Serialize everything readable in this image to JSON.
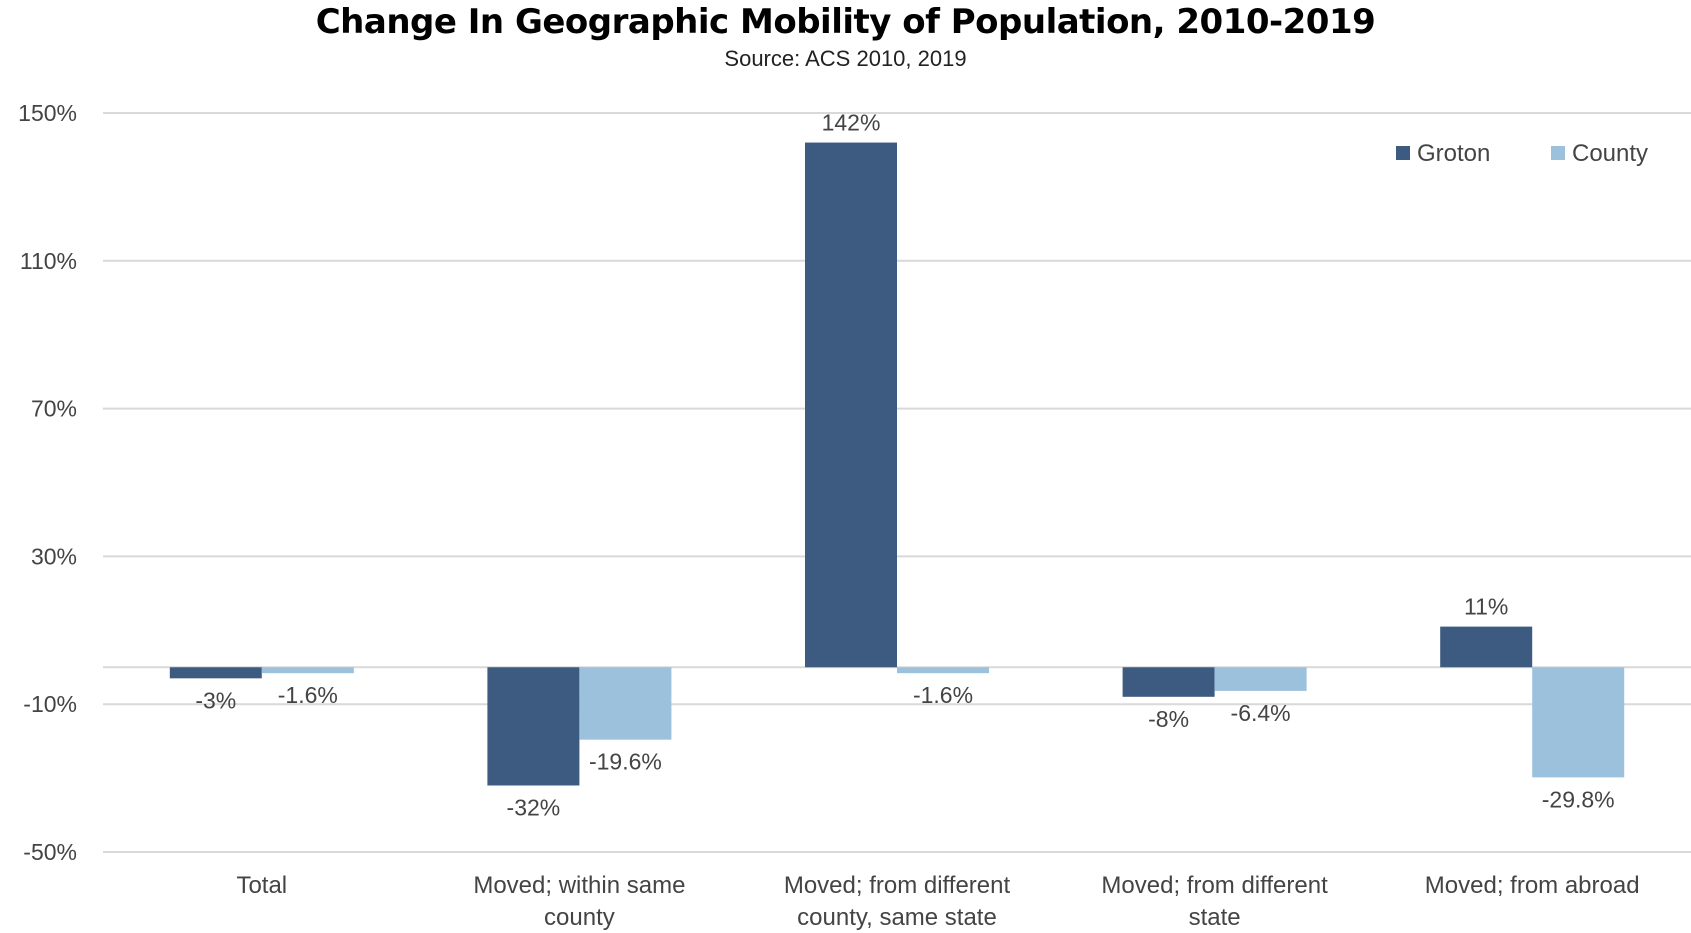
{
  "chart_data": {
    "type": "bar",
    "title": "Change In Geographic Mobility of Population, 2010-2019",
    "subtitle": "Source: ACS 2010, 2019",
    "categories": [
      [
        "Total"
      ],
      [
        "Moved; within same",
        "county"
      ],
      [
        "Moved; from different",
        "county, same state"
      ],
      [
        "Moved; from different",
        "state"
      ],
      [
        "Moved; from abroad"
      ]
    ],
    "series": [
      {
        "name": "Groton",
        "color": "#3d5a80",
        "values": [
          -3,
          -32,
          142,
          -8,
          11
        ],
        "labels": [
          "-3%",
          "-32%",
          "142%",
          "-8%",
          "11%"
        ]
      },
      {
        "name": "County",
        "color": "#9bc1dc",
        "values": [
          -1.6,
          -19.6,
          -1.6,
          -6.4,
          -29.8
        ],
        "labels": [
          "-1.6%",
          "-19.6%",
          "-1.6%",
          "-6.4%",
          "-29.8%"
        ]
      }
    ],
    "yticks": [
      150,
      110,
      70,
      30,
      -10,
      -50
    ],
    "ytick_labels": [
      "150%",
      "110%",
      "70%",
      "30%",
      "-10%",
      "-50%"
    ],
    "ylim": [
      -50,
      150
    ],
    "grid": true,
    "legend_position": "top-right"
  }
}
